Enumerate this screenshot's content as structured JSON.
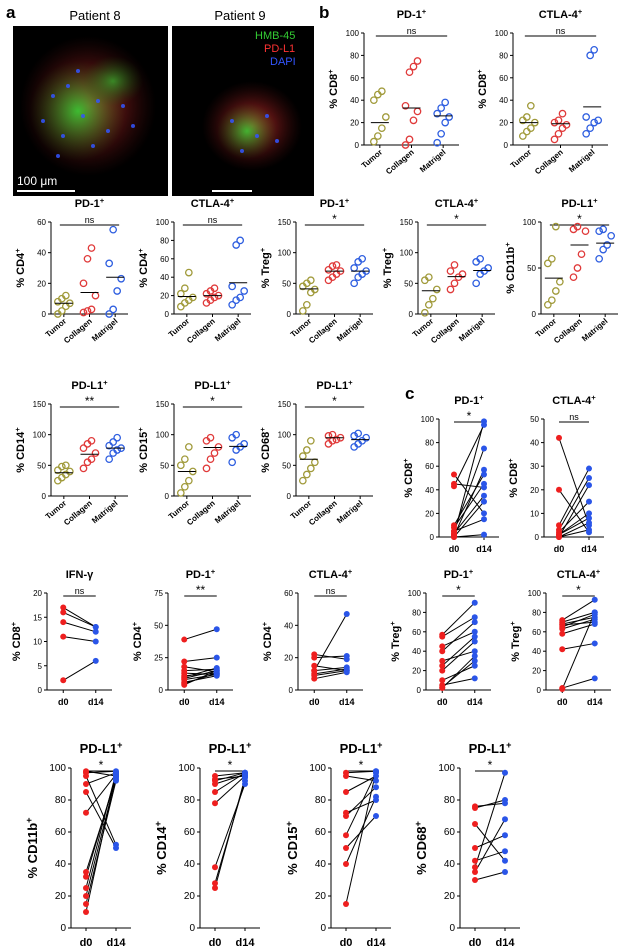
{
  "panels": {
    "a": "a",
    "b": "b",
    "c": "c"
  },
  "micrograph": {
    "left_title": "Patient 8",
    "right_title": "Patient 9",
    "legend": [
      {
        "label": "HMB-45",
        "color": "#33cc33"
      },
      {
        "label": "PD-L1",
        "color": "#ff3333"
      },
      {
        "label": "DAPI",
        "color": "#3355ff"
      }
    ],
    "scale_label": "100 μm"
  },
  "colors": {
    "tumor": "#a09a3a",
    "collagen": "#e03a3a",
    "matrigel": "#2e5ee0",
    "d0": "#ee1f1f",
    "d14": "#2a55e8"
  },
  "chart_data": [
    {
      "id": "b1",
      "type": "scatter",
      "title": "PD-1",
      "title_sup": "+",
      "ylabel": "% CD8",
      "ylabel_sup": "+",
      "ylim": [
        0,
        100
      ],
      "yticks": [
        0,
        20,
        40,
        60,
        80,
        100
      ],
      "categories": [
        "Tumor",
        "Collagen",
        "Matrigel"
      ],
      "sig": "ns",
      "series": [
        {
          "values": [
            3,
            8,
            15,
            25,
            40,
            45,
            48
          ]
        },
        {
          "values": [
            0,
            5,
            22,
            30,
            35,
            65,
            70,
            75
          ]
        },
        {
          "values": [
            2,
            10,
            20,
            25,
            28,
            33,
            38
          ]
        }
      ],
      "means": [
        20,
        33,
        26
      ]
    },
    {
      "id": "b2",
      "type": "scatter",
      "title": "CTLA-4",
      "title_sup": "+",
      "ylabel": "% CD8",
      "ylabel_sup": "+",
      "ylim": [
        0,
        100
      ],
      "yticks": [
        0,
        20,
        40,
        60,
        80,
        100
      ],
      "categories": [
        "Tumor",
        "Collagen",
        "Matrigel"
      ],
      "sig": "ns",
      "series": [
        {
          "values": [
            8,
            12,
            15,
            20,
            22,
            25,
            35
          ]
        },
        {
          "values": [
            5,
            10,
            15,
            18,
            20,
            22,
            28
          ]
        },
        {
          "values": [
            10,
            15,
            20,
            22,
            25,
            80,
            85
          ]
        }
      ],
      "means": [
        20,
        19,
        34
      ]
    },
    {
      "id": "r2c1",
      "type": "scatter",
      "title": "PD-1",
      "title_sup": "+",
      "ylabel": "% CD4",
      "ylabel_sup": "+",
      "ylim": [
        0,
        60
      ],
      "yticks": [
        0,
        20,
        40,
        60
      ],
      "categories": [
        "Tumor",
        "Collagen",
        "Matrigel"
      ],
      "sig": "ns",
      "series": [
        {
          "values": [
            0,
            2,
            5,
            7,
            8,
            10,
            12
          ]
        },
        {
          "values": [
            1,
            2,
            3,
            12,
            20,
            36,
            43
          ]
        },
        {
          "values": [
            0,
            3,
            15,
            23,
            33,
            55
          ]
        }
      ],
      "means": [
        7,
        14,
        24
      ]
    },
    {
      "id": "r2c2",
      "type": "scatter",
      "title": "CTLA-4",
      "title_sup": "+",
      "ylabel": "% CD4",
      "ylabel_sup": "+",
      "ylim": [
        0,
        100
      ],
      "yticks": [
        0,
        20,
        40,
        60,
        80,
        100
      ],
      "categories": [
        "Tumor",
        "Collagen",
        "Matrigel"
      ],
      "sig": "ns",
      "series": [
        {
          "values": [
            8,
            12,
            15,
            18,
            22,
            28,
            45
          ]
        },
        {
          "values": [
            12,
            15,
            18,
            20,
            22,
            25,
            28
          ]
        },
        {
          "values": [
            10,
            15,
            18,
            25,
            30,
            75,
            80
          ]
        }
      ],
      "means": [
        19,
        20,
        34
      ]
    },
    {
      "id": "r2c3",
      "type": "scatter",
      "title": "PD-1",
      "title_sup": "+",
      "ylabel": "% Treg",
      "ylabel_sup": "+",
      "ylim": [
        0,
        150
      ],
      "yticks": [
        0,
        50,
        100,
        150
      ],
      "categories": [
        "Tumor",
        "Collagen",
        "Matrigel"
      ],
      "sig": "*",
      "series": [
        {
          "values": [
            5,
            15,
            35,
            40,
            45,
            50,
            55
          ]
        },
        {
          "values": [
            55,
            60,
            65,
            70,
            72,
            78,
            80
          ]
        },
        {
          "values": [
            50,
            60,
            65,
            70,
            75,
            85,
            90
          ]
        }
      ],
      "means": [
        41,
        70,
        70
      ]
    },
    {
      "id": "r2c4",
      "type": "scatter",
      "title": "CTLA-4",
      "title_sup": "+",
      "ylabel": "% Treg",
      "ylabel_sup": "+",
      "ylim": [
        0,
        150
      ],
      "yticks": [
        0,
        50,
        100,
        150
      ],
      "categories": [
        "Tumor",
        "Collagen",
        "Matrigel"
      ],
      "sig": "*",
      "series": [
        {
          "values": [
            2,
            15,
            25,
            40,
            55,
            60
          ]
        },
        {
          "values": [
            40,
            50,
            60,
            65,
            70,
            80
          ]
        },
        {
          "values": [
            50,
            65,
            70,
            75,
            85,
            90
          ]
        }
      ],
      "means": [
        38,
        61,
        71
      ]
    },
    {
      "id": "r2c5",
      "type": "scatter",
      "title": "PD-L1",
      "title_sup": "+",
      "ylabel": "% CD11b",
      "ylabel_sup": "+",
      "ylim": [
        0,
        100
      ],
      "yticks": [
        0,
        50,
        100
      ],
      "categories": [
        "Tumor",
        "Collagen",
        "Matrigel"
      ],
      "sig": "*",
      "series": [
        {
          "values": [
            10,
            15,
            25,
            35,
            55,
            60,
            95
          ]
        },
        {
          "values": [
            40,
            50,
            65,
            90,
            92,
            95
          ]
        },
        {
          "values": [
            60,
            70,
            75,
            85,
            90,
            92
          ]
        }
      ],
      "means": [
        39,
        75,
        77
      ]
    },
    {
      "id": "r3c1",
      "type": "scatter",
      "title": "PD-L1",
      "title_sup": "+",
      "ylabel": "% CD14",
      "ylabel_sup": "+",
      "ylim": [
        0,
        150
      ],
      "yticks": [
        0,
        50,
        100,
        150
      ],
      "categories": [
        "Tumor",
        "Collagen",
        "Matrigel"
      ],
      "sig": "**",
      "series": [
        {
          "values": [
            25,
            30,
            35,
            40,
            42,
            48,
            50
          ]
        },
        {
          "values": [
            45,
            55,
            60,
            70,
            78,
            85,
            90
          ]
        },
        {
          "values": [
            60,
            70,
            75,
            78,
            82,
            88,
            95
          ]
        }
      ],
      "means": [
        38,
        68,
        78
      ]
    },
    {
      "id": "r3c2",
      "type": "scatter",
      "title": "PD-L1",
      "title_sup": "+",
      "ylabel": "% CD15",
      "ylabel_sup": "+",
      "ylim": [
        0,
        150
      ],
      "yticks": [
        0,
        50,
        100,
        150
      ],
      "categories": [
        "Tumor",
        "Collagen",
        "Matrigel"
      ],
      "sig": "*",
      "series": [
        {
          "values": [
            5,
            15,
            25,
            40,
            50,
            60,
            80
          ]
        },
        {
          "values": [
            45,
            60,
            70,
            80,
            90,
            95
          ]
        },
        {
          "values": [
            55,
            75,
            80,
            85,
            95,
            100
          ]
        }
      ],
      "means": [
        40,
        79,
        81
      ]
    },
    {
      "id": "r3c3",
      "type": "scatter",
      "title": "PD-L1",
      "title_sup": "+",
      "ylabel": "% CD68",
      "ylabel_sup": "+",
      "ylim": [
        0,
        150
      ],
      "yticks": [
        0,
        50,
        100,
        150
      ],
      "categories": [
        "Tumor",
        "Collagen",
        "Matrigel"
      ],
      "sig": "*",
      "series": [
        {
          "values": [
            25,
            35,
            45,
            55,
            65,
            75,
            90
          ]
        },
        {
          "values": [
            85,
            90,
            92,
            95,
            98,
            100
          ]
        },
        {
          "values": [
            80,
            85,
            90,
            95,
            98,
            102
          ]
        }
      ],
      "means": [
        60,
        95,
        92
      ]
    },
    {
      "id": "c1",
      "type": "line",
      "title": "PD-1",
      "title_sup": "+",
      "ylabel": "% CD8",
      "ylabel_sup": "+",
      "ylim": [
        0,
        100
      ],
      "yticks": [
        0,
        20,
        40,
        60,
        80,
        100
      ],
      "categories": [
        "d0",
        "d14"
      ],
      "sig": "*",
      "pairs": [
        [
          53,
          20
        ],
        [
          45,
          42
        ],
        [
          43,
          95
        ],
        [
          10,
          53
        ],
        [
          8,
          45
        ],
        [
          5,
          75
        ],
        [
          5,
          15
        ],
        [
          3,
          35
        ],
        [
          2,
          98
        ],
        [
          1,
          57
        ],
        [
          0,
          2
        ],
        [
          0,
          30
        ]
      ]
    },
    {
      "id": "c2",
      "type": "line",
      "title": "CTLA-4",
      "title_sup": "+",
      "ylabel": "% CD8",
      "ylabel_sup": "+",
      "ylim": [
        0,
        50
      ],
      "yticks": [
        0,
        10,
        20,
        30,
        40,
        50
      ],
      "categories": [
        "d0",
        "d14"
      ],
      "sig": "ns",
      "pairs": [
        [
          42,
          5
        ],
        [
          20,
          2
        ],
        [
          5,
          29
        ],
        [
          3,
          25
        ],
        [
          2,
          15
        ],
        [
          1,
          10
        ],
        [
          1,
          8
        ],
        [
          0,
          22
        ],
        [
          0,
          3
        ],
        [
          0,
          6
        ]
      ]
    },
    {
      "id": "r4c1",
      "type": "line",
      "title": "IFN-γ",
      "title_sup": "",
      "ylabel": "% CD8",
      "ylabel_sup": "+",
      "ylim": [
        0,
        20
      ],
      "yticks": [
        0,
        5,
        10,
        15,
        20
      ],
      "categories": [
        "d0",
        "d14"
      ],
      "sig": "ns",
      "pairs": [
        [
          17,
          13
        ],
        [
          16,
          13
        ],
        [
          14,
          12
        ],
        [
          11,
          10
        ],
        [
          2,
          6
        ]
      ]
    },
    {
      "id": "r4c2",
      "type": "line",
      "title": "PD-1",
      "title_sup": "+",
      "ylabel": "% CD4",
      "ylabel_sup": "+",
      "ylim": [
        0,
        75
      ],
      "yticks": [
        0,
        25,
        50,
        75
      ],
      "categories": [
        "d0",
        "d14"
      ],
      "sig": "**",
      "pairs": [
        [
          39,
          47
        ],
        [
          22,
          25
        ],
        [
          18,
          14
        ],
        [
          15,
          16
        ],
        [
          13,
          12
        ],
        [
          11,
          13
        ],
        [
          10,
          17
        ],
        [
          9,
          15
        ],
        [
          8,
          12
        ],
        [
          6,
          11
        ],
        [
          5,
          13
        ],
        [
          4,
          15
        ]
      ]
    },
    {
      "id": "r4c3",
      "type": "line",
      "title": "CTLA-4",
      "title_sup": "+",
      "ylabel": "% CD4",
      "ylabel_sup": "+",
      "ylim": [
        0,
        60
      ],
      "yticks": [
        0,
        20,
        40,
        60
      ],
      "categories": [
        "d0",
        "d14"
      ],
      "sig": "ns",
      "pairs": [
        [
          22,
          19
        ],
        [
          20,
          21
        ],
        [
          15,
          12
        ],
        [
          12,
          47
        ],
        [
          12,
          14
        ],
        [
          10,
          13
        ],
        [
          9,
          12
        ],
        [
          7,
          11
        ]
      ]
    },
    {
      "id": "r4c4",
      "type": "line",
      "title": "PD-1",
      "title_sup": "+",
      "ylabel": "% Treg",
      "ylabel_sup": "+",
      "ylim": [
        0,
        100
      ],
      "yticks": [
        0,
        20,
        40,
        60,
        80,
        100
      ],
      "categories": [
        "d0",
        "d14"
      ],
      "sig": "*",
      "pairs": [
        [
          57,
          90
        ],
        [
          55,
          75
        ],
        [
          45,
          60
        ],
        [
          40,
          70
        ],
        [
          30,
          40
        ],
        [
          25,
          55
        ],
        [
          20,
          50
        ],
        [
          10,
          25
        ],
        [
          5,
          12
        ],
        [
          3,
          30
        ],
        [
          2,
          35
        ]
      ]
    },
    {
      "id": "r4c5",
      "type": "line",
      "title": "CTLA-4",
      "title_sup": "+",
      "ylabel": "% Treg",
      "ylabel_sup": "+",
      "ylim": [
        0,
        100
      ],
      "yticks": [
        0,
        20,
        40,
        60,
        80,
        100
      ],
      "categories": [
        "d0",
        "d14"
      ],
      "sig": "*",
      "pairs": [
        [
          72,
          93
        ],
        [
          70,
          80
        ],
        [
          68,
          75
        ],
        [
          67,
          70
        ],
        [
          65,
          78
        ],
        [
          63,
          73
        ],
        [
          58,
          68
        ],
        [
          42,
          48
        ],
        [
          2,
          12
        ],
        [
          1,
          80
        ]
      ]
    },
    {
      "id": "r5c1",
      "type": "line",
      "title": "PD-L1",
      "title_sup": "+",
      "ylabel": "% CD11b",
      "ylabel_sup": "+",
      "ylim": [
        0,
        100
      ],
      "yticks": [
        0,
        20,
        40,
        60,
        80,
        100
      ],
      "categories": [
        "d0",
        "d14"
      ],
      "sig": "*",
      "pairs": [
        [
          98,
          95
        ],
        [
          97,
          98
        ],
        [
          95,
          52
        ],
        [
          90,
          97
        ],
        [
          85,
          50
        ],
        [
          72,
          96
        ],
        [
          35,
          93
        ],
        [
          32,
          95
        ],
        [
          25,
          97
        ],
        [
          20,
          94
        ],
        [
          15,
          92
        ],
        [
          10,
          96
        ]
      ]
    },
    {
      "id": "r5c2",
      "type": "line",
      "title": "PD-L1",
      "title_sup": "+",
      "ylabel": "% CD14",
      "ylabel_sup": "+",
      "ylim": [
        0,
        100
      ],
      "yticks": [
        0,
        20,
        40,
        60,
        80,
        100
      ],
      "categories": [
        "d0",
        "d14"
      ],
      "sig": "*",
      "pairs": [
        [
          95,
          97
        ],
        [
          93,
          95
        ],
        [
          92,
          97
        ],
        [
          90,
          96
        ],
        [
          85,
          97
        ],
        [
          78,
          95
        ],
        [
          38,
          90
        ],
        [
          28,
          92
        ],
        [
          25,
          94
        ]
      ]
    },
    {
      "id": "r5c3",
      "type": "line",
      "title": "PD-L1",
      "title_sup": "+",
      "ylabel": "% CD15",
      "ylabel_sup": "+",
      "ylim": [
        0,
        100
      ],
      "yticks": [
        0,
        20,
        40,
        60,
        80,
        100
      ],
      "categories": [
        "d0",
        "d14"
      ],
      "sig": "*",
      "pairs": [
        [
          97,
          98
        ],
        [
          95,
          92
        ],
        [
          85,
          95
        ],
        [
          72,
          80
        ],
        [
          70,
          88
        ],
        [
          58,
          97
        ],
        [
          50,
          70
        ],
        [
          40,
          82
        ],
        [
          15,
          98
        ]
      ]
    },
    {
      "id": "r5c4",
      "type": "line",
      "title": "PD-L1",
      "title_sup": "+",
      "ylabel": "% CD68",
      "ylabel_sup": "+",
      "ylim": [
        0,
        100
      ],
      "yticks": [
        0,
        20,
        40,
        60,
        80,
        100
      ],
      "categories": [
        "d0",
        "d14"
      ],
      "sig": "*",
      "pairs": [
        [
          76,
          78
        ],
        [
          75,
          80
        ],
        [
          65,
          42
        ],
        [
          50,
          58
        ],
        [
          42,
          48
        ],
        [
          38,
          97
        ],
        [
          35,
          68
        ],
        [
          30,
          35
        ]
      ]
    }
  ]
}
